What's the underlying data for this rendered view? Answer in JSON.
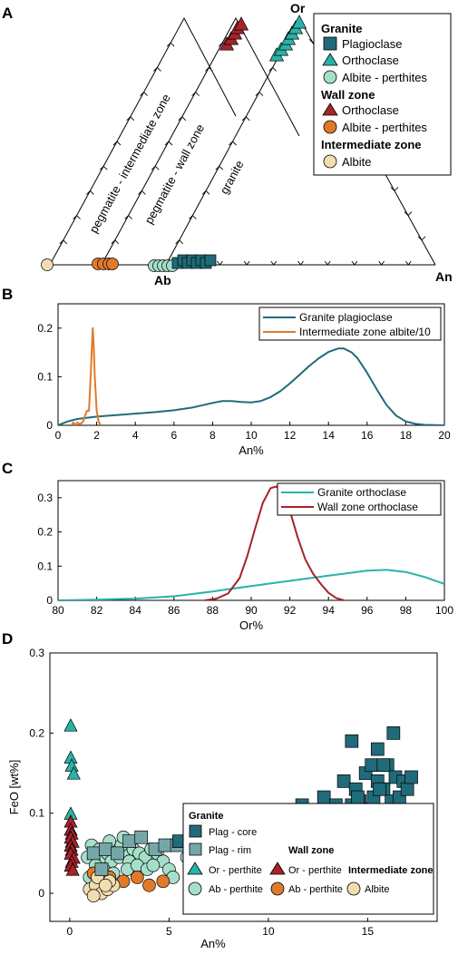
{
  "chart_data": [
    {
      "panel": "A",
      "type": "scatter",
      "subtype": "ternary",
      "vertex_labels": [
        "Ab",
        "An",
        "Or"
      ],
      "band_labels": [
        "pegmatite - intermediate zone",
        "pegmatite - wall zone",
        "granite"
      ],
      "legend": {
        "groups": [
          {
            "title": "Granite",
            "items": [
              {
                "label": "Plagioclase",
                "marker": "square",
                "color": "#1f6b7a"
              },
              {
                "label": "Orthoclase",
                "marker": "triangle",
                "color": "#27b3aa"
              },
              {
                "label": "Albite - perthites",
                "marker": "circle",
                "color": "#a6dfc9"
              }
            ]
          },
          {
            "title": "Wall zone",
            "items": [
              {
                "label": "Orthoclase",
                "marker": "triangle",
                "color": "#a8222a"
              },
              {
                "label": "Albite - perthites",
                "marker": "circle",
                "color": "#e07a2a"
              }
            ]
          },
          {
            "title": "Intermediate zone",
            "items": [
              {
                "label": "Albite",
                "marker": "circle",
                "color": "#f1deb0"
              }
            ]
          }
        ]
      }
    },
    {
      "panel": "B",
      "type": "line",
      "xlabel": "An%",
      "xlim": [
        0,
        20
      ],
      "ylim": [
        0,
        0.25
      ],
      "xticks": [
        0,
        2,
        4,
        6,
        8,
        10,
        12,
        14,
        16,
        18,
        20
      ],
      "yticks": [
        0,
        0.1,
        0.2
      ],
      "series": [
        {
          "name": "Granite plagioclase",
          "color": "#1f6b7a",
          "x": [
            0,
            0.5,
            1,
            2,
            3,
            4,
            5,
            6,
            7,
            8,
            8.5,
            9,
            9.5,
            10,
            10.5,
            11,
            11.5,
            12,
            12.5,
            13,
            13.5,
            14,
            14.5,
            14.8,
            15.2,
            15.5,
            16,
            16.5,
            17,
            17.5,
            18,
            18.5,
            19,
            20
          ],
          "y": [
            0,
            0.008,
            0.013,
            0.018,
            0.021,
            0.024,
            0.027,
            0.031,
            0.037,
            0.046,
            0.05,
            0.05,
            0.048,
            0.047,
            0.05,
            0.058,
            0.07,
            0.086,
            0.104,
            0.122,
            0.138,
            0.151,
            0.158,
            0.158,
            0.15,
            0.138,
            0.108,
            0.074,
            0.042,
            0.02,
            0.008,
            0.003,
            0.001,
            0
          ]
        },
        {
          "name": "Intermediate zone albite/10",
          "color": "#e07a2a",
          "x": [
            0.7,
            0.8,
            0.9,
            1.0,
            1.1,
            1.2,
            1.3,
            1.4,
            1.5,
            1.6,
            1.7,
            1.75,
            1.8,
            1.85,
            1.9,
            2.0,
            2.1,
            2.2
          ],
          "y": [
            0,
            0.006,
            0,
            0.006,
            0.003,
            0.004,
            0.008,
            0.02,
            0.03,
            0.03,
            0.11,
            0.16,
            0.2,
            0.16,
            0.1,
            0.03,
            0.008,
            0
          ]
        }
      ]
    },
    {
      "panel": "C",
      "type": "line",
      "xlabel": "Or%",
      "xlim": [
        80,
        100
      ],
      "ylim": [
        0,
        0.35
      ],
      "xticks": [
        80,
        82,
        84,
        86,
        88,
        90,
        92,
        94,
        96,
        98,
        100
      ],
      "yticks": [
        0,
        0.1,
        0.2,
        0.3
      ],
      "series": [
        {
          "name": "Granite orthoclase",
          "color": "#27b3aa",
          "x": [
            80,
            82,
            84,
            86,
            88,
            90,
            92,
            94,
            96,
            97,
            98,
            99,
            100
          ],
          "y": [
            0,
            0.002,
            0.005,
            0.012,
            0.026,
            0.042,
            0.057,
            0.072,
            0.087,
            0.089,
            0.083,
            0.068,
            0.048
          ]
        },
        {
          "name": "Wall zone orthoclase",
          "color": "#a8222a",
          "x": [
            87.6,
            88.2,
            88.8,
            89.4,
            89.8,
            90.2,
            90.6,
            91.0,
            91.3,
            91.6,
            92.0,
            92.4,
            92.8,
            93.2,
            93.6,
            94.0,
            94.4,
            94.8
          ],
          "y": [
            0,
            0.005,
            0.02,
            0.065,
            0.13,
            0.21,
            0.285,
            0.328,
            0.333,
            0.318,
            0.262,
            0.185,
            0.12,
            0.078,
            0.048,
            0.022,
            0.007,
            0
          ]
        }
      ]
    },
    {
      "panel": "D",
      "type": "scatter",
      "xlabel": "An%",
      "ylabel": "FeO [wt%]",
      "xlim": [
        -1,
        18.5
      ],
      "ylim": [
        -0.035,
        0.3
      ],
      "xticks": [
        0,
        5,
        10,
        15
      ],
      "yticks": [
        0,
        0.1,
        0.2,
        0.3
      ],
      "legend_titles": {
        "granite": "Granite",
        "wall": "Wall zone",
        "intermediate": "Intermediate zone"
      },
      "series": [
        {
          "name": "Plag - core",
          "group": "Granite",
          "marker": "square",
          "color": "#1f6b7a",
          "points": [
            [
              5.5,
              0.065
            ],
            [
              6.2,
              0.07
            ],
            [
              6.8,
              0.07
            ],
            [
              7.5,
              0.055
            ],
            [
              7.8,
              0.04
            ],
            [
              8.2,
              0.05
            ],
            [
              8.5,
              0.075
            ],
            [
              8.9,
              0.07
            ],
            [
              9.4,
              0.06
            ],
            [
              9.8,
              0.085
            ],
            [
              10.1,
              0.05
            ],
            [
              10.5,
              0.07
            ],
            [
              10.8,
              0.075
            ],
            [
              11.2,
              0.055
            ],
            [
              11.5,
              0.09
            ],
            [
              11.7,
              0.11
            ],
            [
              11.9,
              0.07
            ],
            [
              12.2,
              0.085
            ],
            [
              12.4,
              0.1
            ],
            [
              12.6,
              0.06
            ],
            [
              12.8,
              0.12
            ],
            [
              13.0,
              0.075
            ],
            [
              13.2,
              0.09
            ],
            [
              13.4,
              0.11
            ],
            [
              13.6,
              0.06
            ],
            [
              13.8,
              0.14
            ],
            [
              14.0,
              0.095
            ],
            [
              14.2,
              0.11
            ],
            [
              14.4,
              0.13
            ],
            [
              14.6,
              0.115
            ],
            [
              14.8,
              0.085
            ],
            [
              14.9,
              0.15
            ],
            [
              15.0,
              0.105
            ],
            [
              15.2,
              0.16
            ],
            [
              15.3,
              0.12
            ],
            [
              15.5,
              0.14
            ],
            [
              15.6,
              0.1
            ],
            [
              15.8,
              0.13
            ],
            [
              16.0,
              0.16
            ],
            [
              16.2,
              0.115
            ],
            [
              16.4,
              0.145
            ],
            [
              16.6,
              0.12
            ],
            [
              16.8,
              0.14
            ],
            [
              17.0,
              0.13
            ],
            [
              17.2,
              0.145
            ],
            [
              16.9,
              0.09
            ],
            [
              15.4,
              0.09
            ],
            [
              13.9,
              0.08
            ],
            [
              12.1,
              0.055
            ],
            [
              9.0,
              0.06
            ],
            [
              8.0,
              0.045
            ],
            [
              7.3,
              0.045
            ],
            [
              14.2,
              0.19
            ],
            [
              15.5,
              0.18
            ],
            [
              16.3,
              0.2
            ],
            [
              15.8,
              0.16
            ],
            [
              15.6,
              0.13
            ],
            [
              14.5,
              0.12
            ],
            [
              13.1,
              0.085
            ],
            [
              16.1,
              0.1
            ]
          ]
        },
        {
          "name": "Plag - rim",
          "group": "Granite",
          "marker": "square",
          "color": "#76a7a8",
          "points": [
            [
              1.2,
              0.05
            ],
            [
              1.8,
              0.055
            ],
            [
              2.4,
              0.05
            ],
            [
              3.0,
              0.065
            ],
            [
              3.6,
              0.07
            ],
            [
              4.3,
              0.055
            ],
            [
              4.8,
              0.06
            ],
            [
              5.4,
              0.06
            ],
            [
              1.6,
              0.03
            ]
          ]
        },
        {
          "name": "Or - perthite",
          "group": "Granite",
          "marker": "triangle",
          "color": "#27b3aa",
          "points": [
            [
              0.05,
              0.21
            ],
            [
              0.05,
              0.17
            ],
            [
              0.1,
              0.16
            ],
            [
              0.2,
              0.15
            ],
            [
              0.05,
              0.1
            ],
            [
              0.05,
              0.08
            ],
            [
              0.1,
              0.065
            ]
          ]
        },
        {
          "name": "Ab - perthite",
          "group": "Granite",
          "marker": "circle",
          "color": "#a6dfc9",
          "points": [
            [
              0.9,
              0.045
            ],
            [
              1.1,
              0.06
            ],
            [
              1.4,
              0.05
            ],
            [
              1.6,
              0.045
            ],
            [
              1.9,
              0.05
            ],
            [
              2.1,
              0.04
            ],
            [
              2.3,
              0.055
            ],
            [
              2.5,
              0.045
            ],
            [
              2.8,
              0.05
            ],
            [
              3.0,
              0.04
            ],
            [
              3.2,
              0.055
            ],
            [
              3.5,
              0.05
            ],
            [
              3.8,
              0.045
            ],
            [
              4.1,
              0.055
            ],
            [
              4.4,
              0.05
            ],
            [
              4.7,
              0.04
            ],
            [
              5.0,
              0.03
            ],
            [
              5.2,
              0.02
            ],
            [
              2.0,
              0.065
            ],
            [
              2.6,
              0.06
            ],
            [
              1.3,
              0.035
            ],
            [
              1.7,
              0.03
            ],
            [
              2.2,
              0.025
            ],
            [
              2.9,
              0.03
            ],
            [
              3.4,
              0.035
            ],
            [
              3.9,
              0.03
            ],
            [
              4.2,
              0.035
            ],
            [
              1.0,
              0.02
            ],
            [
              1.5,
              0.055
            ],
            [
              2.7,
              0.07
            ],
            [
              6.5,
              0.05
            ],
            [
              5.9,
              0.045
            ],
            [
              4.9,
              0.06
            ]
          ]
        },
        {
          "name": "Or - perthite",
          "group": "Wall zone",
          "marker": "triangle",
          "color": "#a8222a",
          "points": [
            [
              0.05,
              0.09
            ],
            [
              0.05,
              0.08
            ],
            [
              0.1,
              0.075
            ],
            [
              0.05,
              0.07
            ],
            [
              0.15,
              0.065
            ],
            [
              0.05,
              0.06
            ],
            [
              0.1,
              0.055
            ],
            [
              0.05,
              0.05
            ],
            [
              0.2,
              0.045
            ],
            [
              0.1,
              0.04
            ],
            [
              0.05,
              0.035
            ],
            [
              0.15,
              0.03
            ]
          ]
        },
        {
          "name": "Ab - perthite",
          "group": "Wall zone",
          "marker": "circle",
          "color": "#e07a2a",
          "points": [
            [
              1.2,
              0.025
            ],
            [
              2.0,
              0.02
            ],
            [
              2.7,
              0.015
            ],
            [
              3.4,
              0.02
            ],
            [
              4.0,
              0.01
            ],
            [
              4.7,
              0.015
            ],
            [
              1.6,
              0.01
            ]
          ]
        },
        {
          "name": "Albite",
          "group": "Intermediate zone",
          "marker": "circle",
          "color": "#f1deb0",
          "points": [
            [
              1.0,
              0.005
            ],
            [
              1.3,
              0.01
            ],
            [
              1.6,
              0.0
            ],
            [
              1.9,
              0.005
            ],
            [
              2.2,
              0.01
            ],
            [
              1.4,
              0.02
            ],
            [
              2.0,
              0.015
            ],
            [
              1.2,
              -0.003
            ],
            [
              1.8,
              0.01
            ]
          ]
        }
      ]
    }
  ]
}
